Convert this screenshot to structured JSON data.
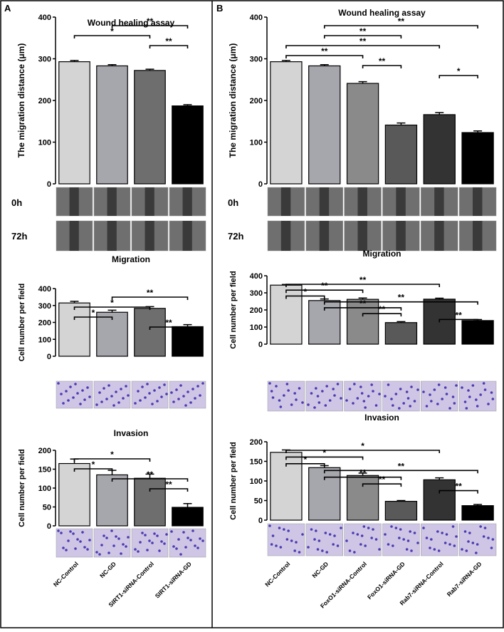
{
  "panels": [
    "A",
    "B"
  ],
  "row_labels": [
    "0h",
    "72h"
  ],
  "chart_data": [
    {
      "type": "bar",
      "title": "Wound healing assay",
      "y_label": "The migration distance (μm)",
      "values": [
        293,
        283,
        272,
        187
      ],
      "errors": [
        3,
        3,
        3,
        3
      ],
      "colors": [
        "#d4d4d4",
        "#a6a6ad",
        "#6e6e6e",
        "#000000"
      ],
      "ylim": [
        0,
        400
      ],
      "yticks": [
        0,
        100,
        200,
        300,
        400
      ],
      "significance": [
        {
          "from": 1,
          "to": 3,
          "text": "**"
        },
        {
          "from": 0,
          "to": 2,
          "text": "*"
        },
        {
          "from": 2,
          "to": 3,
          "text": "**"
        }
      ]
    },
    {
      "type": "bar",
      "title": "Migration",
      "y_label": "Cell number per field",
      "values": [
        315,
        260,
        283,
        175
      ],
      "errors": [
        10,
        12,
        10,
        12
      ],
      "colors": [
        "#d4d4d4",
        "#a6a6ad",
        "#6e6e6e",
        "#000000"
      ],
      "ylim": [
        0,
        400
      ],
      "yticks": [
        0,
        100,
        200,
        300,
        400
      ],
      "significance": [
        {
          "from": 1,
          "to": 3,
          "text": "**"
        },
        {
          "from": 0,
          "to": 2,
          "text": "*"
        },
        {
          "from": 0,
          "to": 1,
          "text": "*"
        },
        {
          "from": 2,
          "to": 3,
          "text": "**"
        }
      ]
    },
    {
      "type": "bar",
      "title": "Invasion",
      "y_label": "Cell number per field",
      "categories": [
        "NC-Control",
        "NC-GD",
        "SIRT1-siRNA-Control",
        "SIRT1-siRNA-GD"
      ],
      "values": [
        165,
        135,
        126,
        49
      ],
      "errors": [
        12,
        12,
        11,
        10
      ],
      "colors": [
        "#d4d4d4",
        "#a6a6ad",
        "#6e6e6e",
        "#000000"
      ],
      "ylim": [
        0,
        200
      ],
      "yticks": [
        0,
        50,
        100,
        150,
        200
      ],
      "significance": [
        {
          "from": 0,
          "to": 2,
          "text": "*"
        },
        {
          "from": 0,
          "to": 1,
          "text": "*"
        },
        {
          "from": 1,
          "to": 3,
          "text": "**"
        },
        {
          "from": 2,
          "to": 3,
          "text": "**"
        }
      ]
    },
    {
      "type": "bar",
      "title": "Wound healing assay",
      "y_label": "The migration distance (μm)",
      "values": [
        293,
        283,
        241,
        141,
        166,
        123
      ],
      "errors": [
        3,
        3,
        4,
        5,
        5,
        4
      ],
      "colors": [
        "#d4d4d4",
        "#a6a6ad",
        "#8a8a8a",
        "#595959",
        "#333333",
        "#000000"
      ],
      "ylim": [
        0,
        400
      ],
      "yticks": [
        0,
        100,
        200,
        300,
        400
      ],
      "significance": [
        {
          "from": 1,
          "to": 5,
          "text": "**"
        },
        {
          "from": 1,
          "to": 3,
          "text": "**"
        },
        {
          "from": 0,
          "to": 4,
          "text": "**"
        },
        {
          "from": 0,
          "to": 2,
          "text": "**"
        },
        {
          "from": 2,
          "to": 3,
          "text": "**"
        },
        {
          "from": 4,
          "to": 5,
          "text": "*"
        }
      ]
    },
    {
      "type": "bar",
      "title": "Migration",
      "y_label": "Cell number per field",
      "values": [
        345,
        255,
        262,
        126,
        263,
        138
      ],
      "errors": [
        4,
        9,
        8,
        6,
        6,
        6
      ],
      "colors": [
        "#d4d4d4",
        "#a6a6ad",
        "#8a8a8a",
        "#595959",
        "#333333",
        "#000000"
      ],
      "ylim": [
        0,
        400
      ],
      "yticks": [
        0,
        100,
        200,
        300,
        400
      ],
      "significance": [
        {
          "from": 0,
          "to": 4,
          "text": "**"
        },
        {
          "from": 0,
          "to": 2,
          "text": "**"
        },
        {
          "from": 0,
          "to": 1,
          "text": "*"
        },
        {
          "from": 1,
          "to": 5,
          "text": "**"
        },
        {
          "from": 1,
          "to": 3,
          "text": "**"
        },
        {
          "from": 2,
          "to": 3,
          "text": "**"
        },
        {
          "from": 4,
          "to": 5,
          "text": "**"
        }
      ]
    },
    {
      "type": "bar",
      "title": "Invasion",
      "y_label": "Cell number per field",
      "categories": [
        "NC-Control",
        "NC-GD",
        "FoxO1-siRNA-Control",
        "FoxO1-siRNA-GD",
        "Rab7-siRNA-Control",
        "Rab7-siRNA-GD"
      ],
      "values": [
        173,
        134,
        114,
        48,
        103,
        37
      ],
      "errors": [
        6,
        5,
        6,
        2,
        5,
        3
      ],
      "colors": [
        "#d4d4d4",
        "#a6a6ad",
        "#8a8a8a",
        "#595959",
        "#333333",
        "#000000"
      ],
      "ylim": [
        0,
        200
      ],
      "yticks": [
        0,
        50,
        100,
        150,
        200
      ],
      "significance": [
        {
          "from": 0,
          "to": 4,
          "text": "*"
        },
        {
          "from": 0,
          "to": 2,
          "text": "*"
        },
        {
          "from": 0,
          "to": 1,
          "text": "*"
        },
        {
          "from": 1,
          "to": 5,
          "text": "**"
        },
        {
          "from": 1,
          "to": 3,
          "text": "**"
        },
        {
          "from": 2,
          "to": 3,
          "text": "**"
        },
        {
          "from": 4,
          "to": 5,
          "text": "**"
        }
      ]
    }
  ]
}
